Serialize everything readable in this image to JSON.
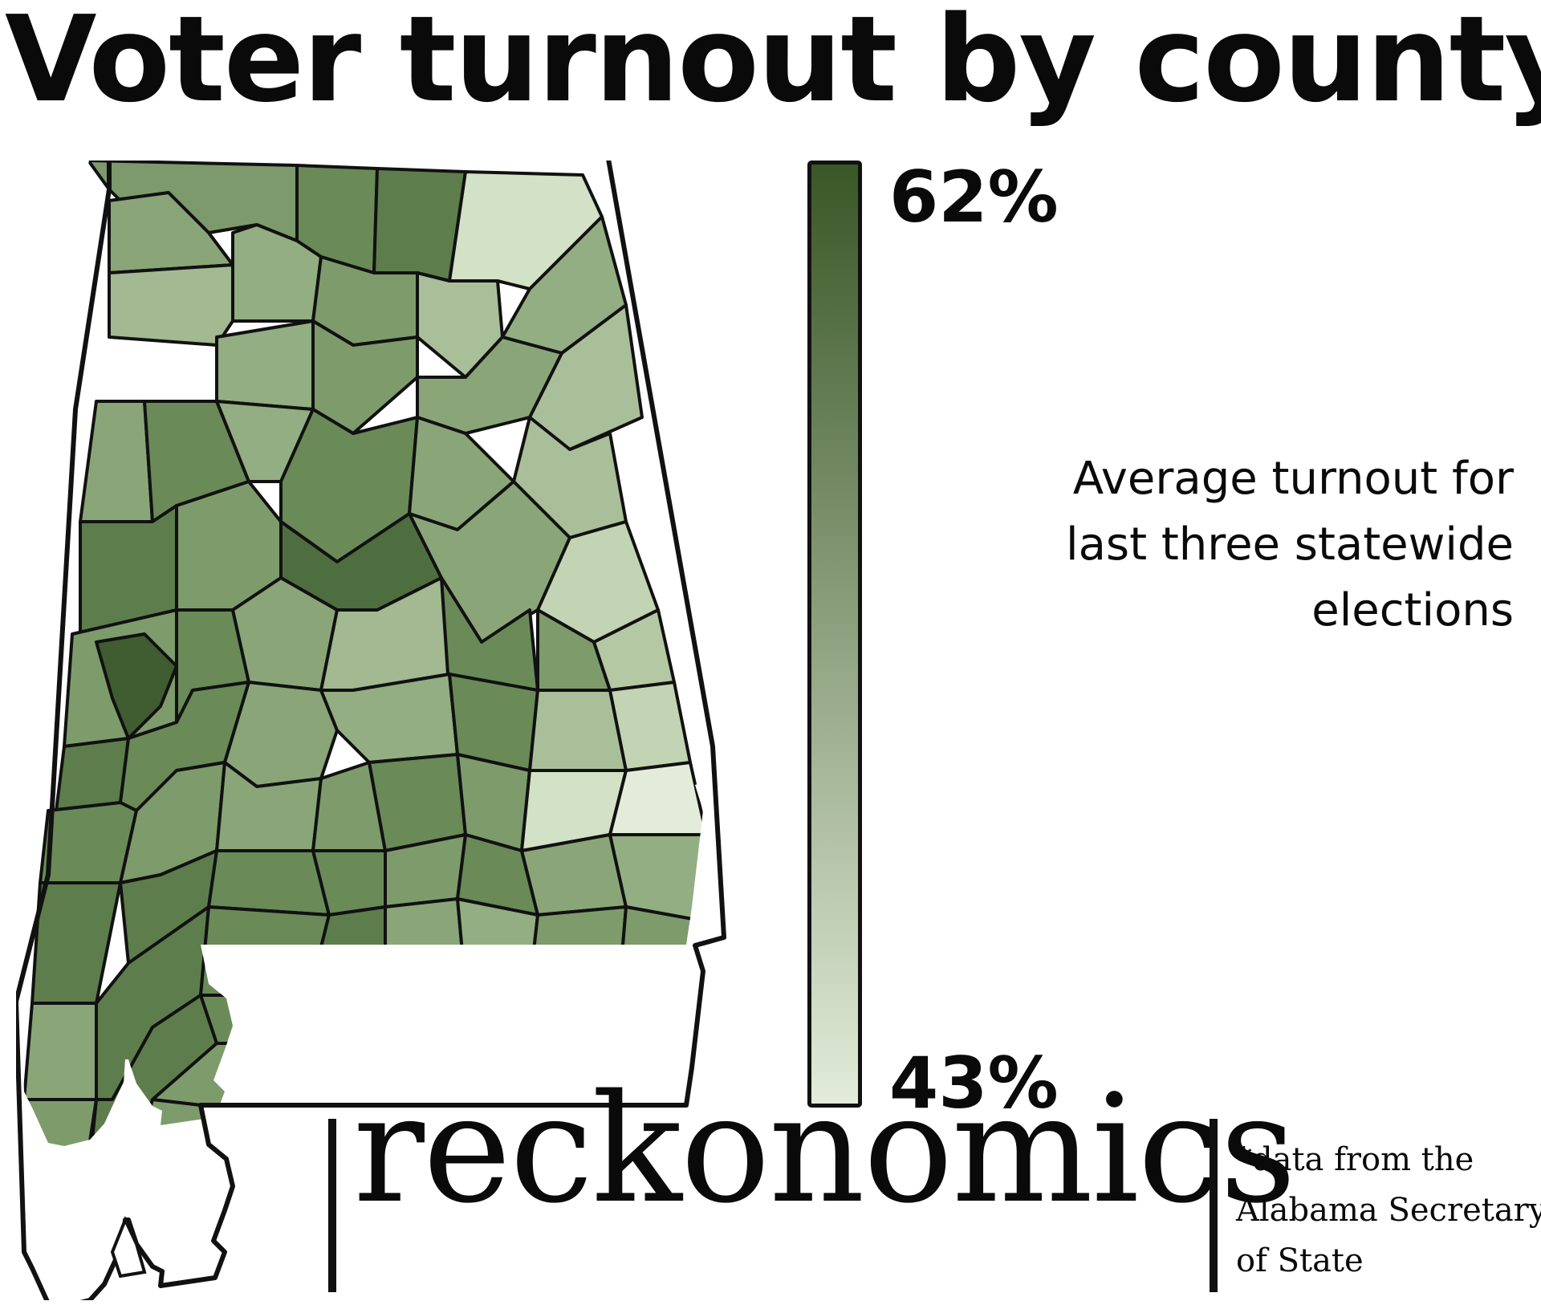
{
  "title": "Voter turnout by county",
  "legend": {
    "max_label": "62%",
    "min_label": "43%",
    "max_value": 62,
    "min_value": 43,
    "max_color": "#3a5727",
    "min_color": "#e2ecd9",
    "description_lines": [
      "Average turnout for",
      "last three statewide",
      "elections"
    ]
  },
  "brand": "reckonomics",
  "source_lines": [
    "*data from the",
    "Alabama Secretary",
    "of State"
  ],
  "colors": {
    "border": "#111111",
    "background": "#ffffff"
  }
}
